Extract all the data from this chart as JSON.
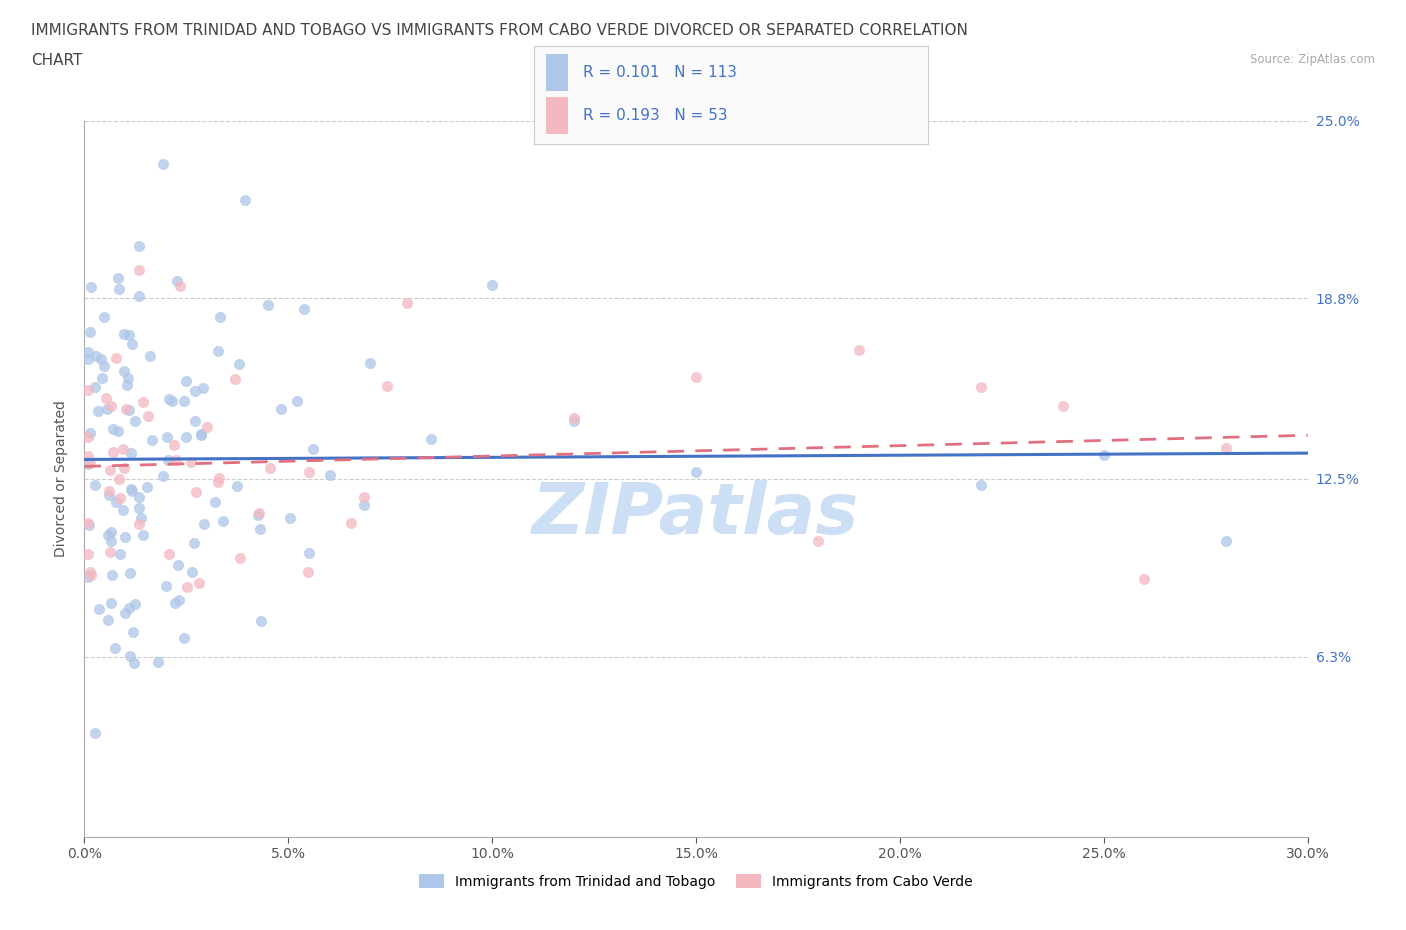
{
  "title_line1": "IMMIGRANTS FROM TRINIDAD AND TOBAGO VS IMMIGRANTS FROM CABO VERDE DIVORCED OR SEPARATED CORRELATION",
  "title_line2": "CHART",
  "source": "Source: ZipAtlas.com",
  "ylabel": "Divorced or Separated",
  "xlim": [
    0.0,
    0.3
  ],
  "ylim": [
    0.0,
    0.25
  ],
  "xtick_labels": [
    "0.0%",
    "",
    "",
    "",
    "",
    "",
    "",
    "",
    "",
    "",
    "",
    "",
    "5.0%",
    "",
    "",
    "",
    "",
    "",
    "",
    "",
    "",
    "",
    "",
    "",
    "",
    "10.0%",
    "",
    "",
    "",
    "",
    "",
    "",
    "",
    "",
    "",
    "",
    "",
    "",
    "15.0%",
    "",
    "",
    "",
    "",
    "",
    "",
    "",
    "",
    "",
    "",
    "",
    "",
    "20.0%",
    "",
    "",
    "",
    "",
    "",
    "",
    "",
    "",
    "",
    "",
    "",
    "",
    "25.0%",
    "",
    "",
    "",
    "",
    "",
    "",
    "",
    "",
    "",
    "",
    "",
    "",
    "30.0%"
  ],
  "xtick_values_major": [
    0.0,
    0.05,
    0.1,
    0.15,
    0.2,
    0.25,
    0.3
  ],
  "ytick_labels": [
    "6.3%",
    "12.5%",
    "18.8%",
    "25.0%"
  ],
  "ytick_values": [
    0.063,
    0.125,
    0.188,
    0.25
  ],
  "R_tt": 0.101,
  "N_tt": 113,
  "R_cv": 0.193,
  "N_cv": 53,
  "color_tt": "#aec6e8",
  "color_cv": "#f4b8c1",
  "line_color_tt": "#4472c4",
  "line_color_cv": "#e07080",
  "legend_label_tt": "Immigrants from Trinidad and Tobago",
  "legend_label_cv": "Immigrants from Cabo Verde",
  "watermark": "ZIPatlas",
  "watermark_color": "#ccdff5",
  "background_color": "#ffffff",
  "grid_color": "#cccccc",
  "title_fontsize": 11,
  "axis_label_fontsize": 10,
  "tick_fontsize": 10,
  "tt_line_start_y": 0.128,
  "tt_line_end_y": 0.148,
  "cv_line_start_y": 0.128,
  "cv_line_end_y": 0.162
}
